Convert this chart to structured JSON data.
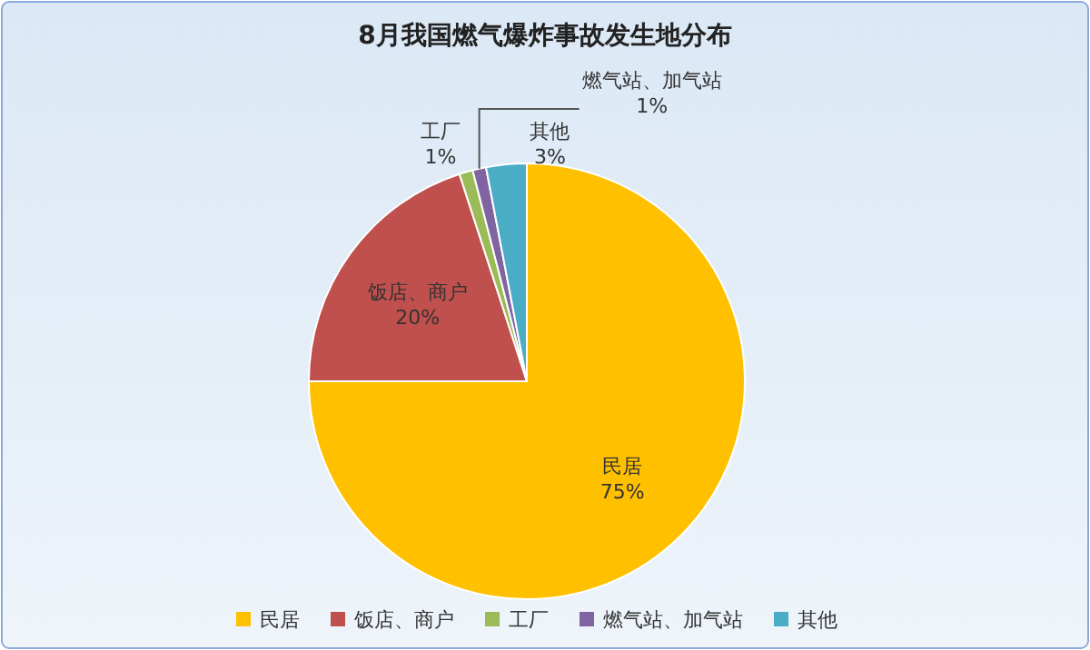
{
  "chart_data": {
    "type": "pie",
    "title": "8月我国燃气爆炸事故发生地分布",
    "categories": [
      "民居",
      "饭店、商户",
      "工厂",
      "燃气站、加气站",
      "其他"
    ],
    "values": [
      75,
      20,
      1,
      1,
      3
    ],
    "value_labels": [
      "75%",
      "20%",
      "1%",
      "1%",
      "3%"
    ],
    "colors": [
      "#ffc000",
      "#c0504d",
      "#9bbb59",
      "#8064a2",
      "#4bacc6"
    ],
    "legend": "bottom"
  }
}
